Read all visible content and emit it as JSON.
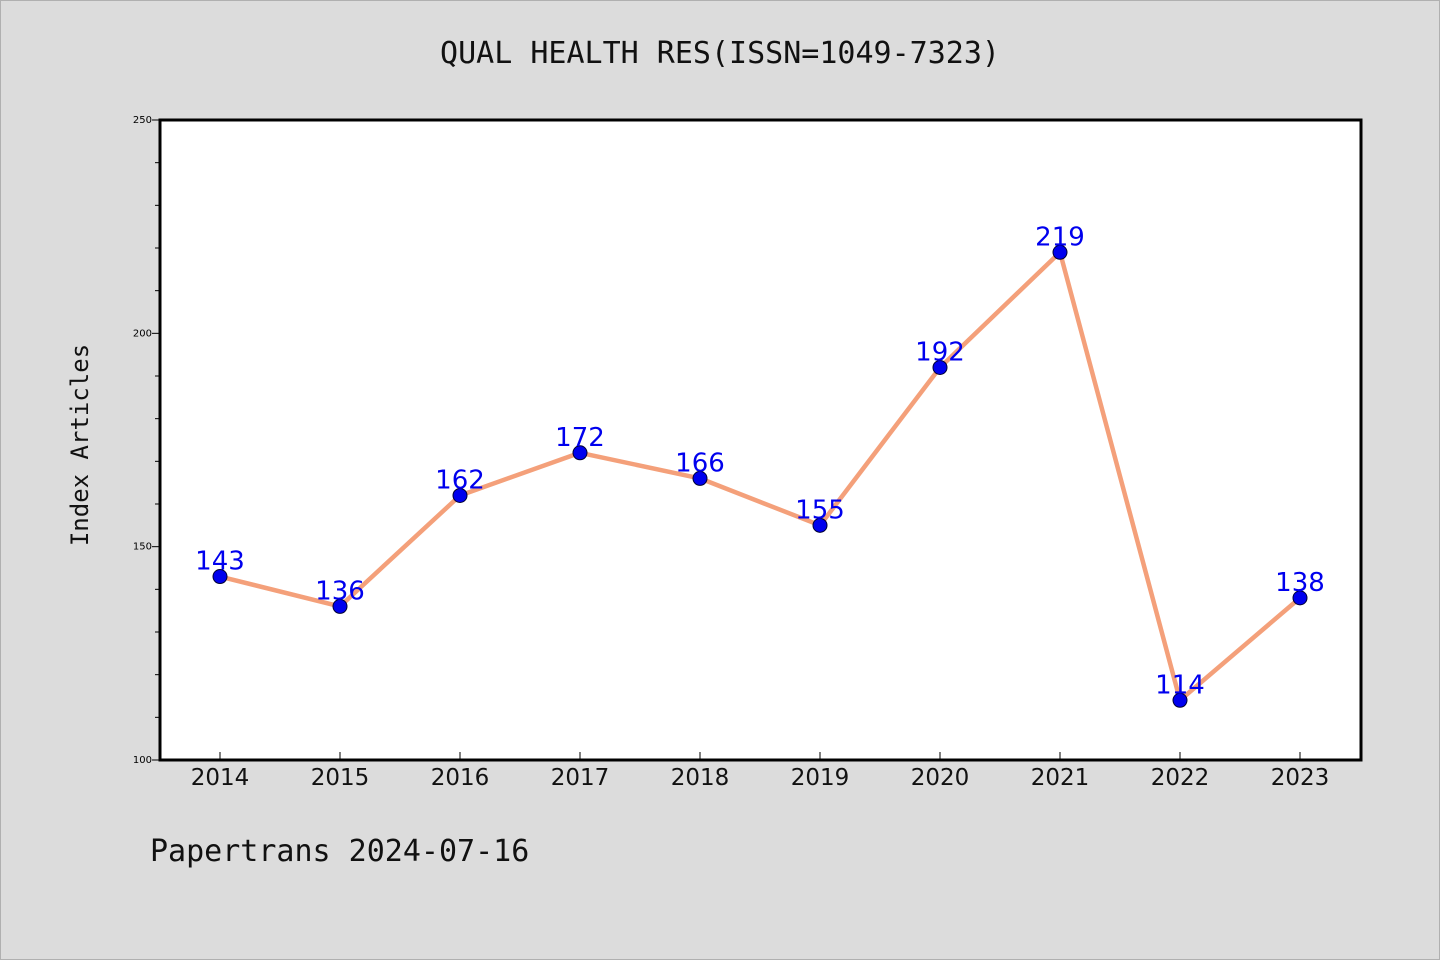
{
  "chart_data": {
    "type": "line",
    "title": "QUAL HEALTH RES(ISSN=1049-7323)",
    "xlabel": "",
    "ylabel": "Index Articles",
    "x": [
      "2014",
      "2015",
      "2016",
      "2017",
      "2018",
      "2019",
      "2020",
      "2021",
      "2022",
      "2023"
    ],
    "series": [
      {
        "values": [
          143,
          136,
          162,
          172,
          166,
          155,
          192,
          219,
          114,
          138
        ]
      }
    ],
    "ylim": [
      100,
      250
    ],
    "yticks": [
      "100",
      "150",
      "200",
      "250"
    ],
    "grid": false,
    "line_color": "#f4a07a",
    "marker_color": "#0000ee",
    "label_color": "#0000ee"
  },
  "footer": "Papertrans 2024-07-16"
}
